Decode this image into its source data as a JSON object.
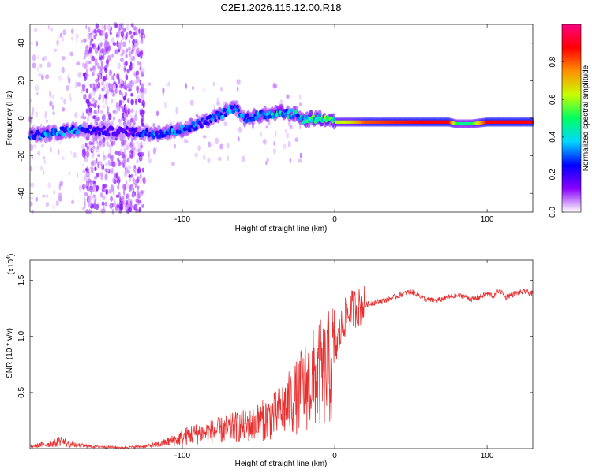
{
  "figure_title": "C2E1.2026.115.12.00.R18",
  "chart_data": [
    {
      "type": "heatmap",
      "title": "C2E1.2026.115.12.00.R18",
      "xlabel": "Height of straight line (km)",
      "ylabel": "Frequency (Hz)",
      "xlim": [
        -200,
        130
      ],
      "ylim": [
        -50,
        50
      ],
      "xticks": [
        -100,
        0,
        100
      ],
      "yticks": [
        -40,
        -20,
        0,
        20,
        40
      ],
      "colorbar": {
        "label": "Normalized spectral amplitude",
        "range": [
          0,
          1
        ],
        "ticks": [
          0.0,
          0.2,
          0.4,
          0.6,
          0.8
        ],
        "tick_labels": [
          "0.0",
          "0.2",
          "0.4",
          "0.6",
          "0.8"
        ],
        "colormap": [
          "#ffffff",
          "#8a00ff",
          "#0000ff",
          "#00d8ff",
          "#00ff60",
          "#c8ff00",
          "#ff9000",
          "#ff0000",
          "#ff0080"
        ]
      },
      "ridge": {
        "x": [
          -200,
          -185,
          -170,
          -165,
          -150,
          -135,
          -125,
          -115,
          -100,
          -85,
          -70,
          -65,
          -60,
          -45,
          -35,
          -25,
          -20,
          -15,
          -10,
          -5,
          0,
          10,
          20,
          40,
          60,
          75,
          80,
          85,
          90,
          100,
          110,
          130
        ],
        "freq": [
          -9,
          -8,
          -6,
          -6,
          -7,
          -7,
          -8,
          -8,
          -6,
          -2,
          4,
          6,
          0,
          2,
          3,
          2,
          -1,
          0,
          0,
          -1,
          -2,
          -2,
          -2,
          -2,
          -2,
          -2,
          -3,
          -3,
          -3,
          -2,
          -2,
          -2
        ],
        "amplitude": [
          0.35,
          0.35,
          0.35,
          0.25,
          0.2,
          0.2,
          0.3,
          0.35,
          0.35,
          0.3,
          0.35,
          0.3,
          0.35,
          0.4,
          0.45,
          0.4,
          0.5,
          0.55,
          0.55,
          0.55,
          0.6,
          0.65,
          0.8,
          0.85,
          0.88,
          0.88,
          0.5,
          0.45,
          0.5,
          0.88,
          0.88,
          0.88
        ]
      },
      "noise_band_x": [
        -165,
        -125
      ]
    },
    {
      "type": "line",
      "xlabel": "Height of straight line (km)",
      "ylabel": "SNR (10 * v/v)",
      "y_multiplier_label": "(x10",
      "y_multiplier_exp": "4",
      "y_multiplier_close": ")",
      "xlim": [
        -200,
        130
      ],
      "ylim": [
        0,
        1.68
      ],
      "xticks": [
        -100,
        0,
        100
      ],
      "yticks": [
        0.5,
        1.0,
        1.5
      ],
      "ytick_labels": [
        "0.5",
        "1.0",
        "1.5"
      ],
      "color": "#e83030",
      "series": [
        {
          "name": "SNR",
          "x": [
            -200,
            -190,
            -183,
            -180,
            -175,
            -160,
            -140,
            -125,
            -115,
            -105,
            -95,
            -85,
            -75,
            -65,
            -55,
            -45,
            -38,
            -32,
            -27,
            -22,
            -18,
            -14,
            -10,
            -7,
            -4,
            0,
            3,
            6,
            9,
            12,
            17,
            25,
            35,
            45,
            50,
            55,
            60,
            65,
            70,
            75,
            80,
            85,
            90,
            95,
            100,
            105,
            108,
            112,
            118,
            125,
            130
          ],
          "y": [
            0.02,
            0.04,
            0.05,
            0.08,
            0.04,
            0.02,
            0.01,
            0.02,
            0.04,
            0.08,
            0.13,
            0.15,
            0.17,
            0.2,
            0.22,
            0.28,
            0.32,
            0.4,
            0.45,
            0.55,
            0.6,
            0.65,
            0.7,
            0.7,
            0.75,
            0.85,
            1.0,
            1.15,
            1.2,
            1.25,
            1.27,
            1.3,
            1.33,
            1.38,
            1.4,
            1.37,
            1.33,
            1.32,
            1.33,
            1.35,
            1.36,
            1.36,
            1.33,
            1.35,
            1.38,
            1.36,
            1.42,
            1.35,
            1.38,
            1.4,
            1.38
          ]
        }
      ]
    }
  ]
}
